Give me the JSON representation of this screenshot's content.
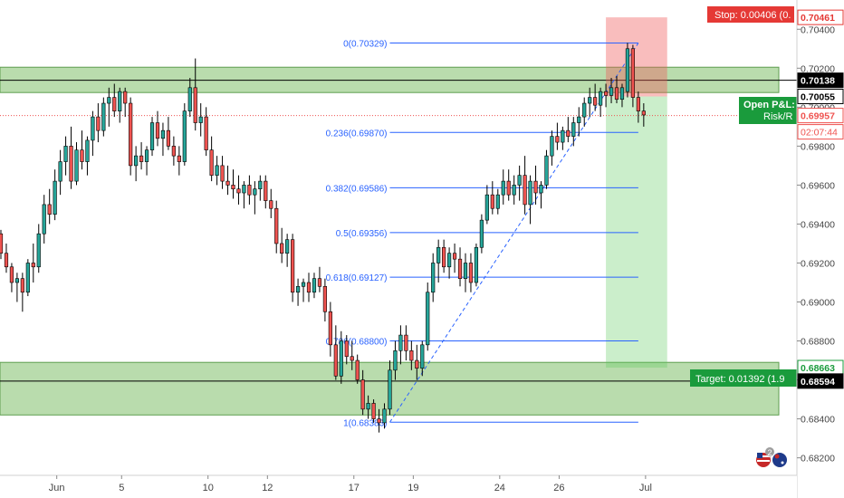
{
  "chart_data": {
    "type": "candlestick",
    "symbol_timeframe": "",
    "y_axis": {
      "ticks": [
        0.682,
        0.684,
        0.686,
        0.688,
        0.69,
        0.692,
        0.694,
        0.696,
        0.698,
        0.7,
        0.702,
        0.704
      ],
      "tick_labels": [
        "0.68200",
        "0.68400",
        "0.68600",
        "0.68800",
        "0.69000",
        "0.69200",
        "0.69400",
        "0.69600",
        "0.69800",
        "0.70000",
        "0.70200",
        "0.70400"
      ],
      "range": [
        0.6811,
        0.7055
      ]
    },
    "x_axis": {
      "labels": [
        {
          "label": "Jun",
          "bar": 9
        },
        {
          "label": "5",
          "bar": 21
        },
        {
          "label": "10",
          "bar": 37
        },
        {
          "label": "12",
          "bar": 48
        },
        {
          "label": "17",
          "bar": 64
        },
        {
          "label": "19",
          "bar": 75
        },
        {
          "label": "24",
          "bar": 91
        },
        {
          "label": "26",
          "bar": 102
        },
        {
          "label": "Jul",
          "bar": 118
        }
      ],
      "bar_count": 123
    },
    "candles_ohlc": [
      [
        0.6935,
        0.6937,
        0.6922,
        0.6925
      ],
      [
        0.6925,
        0.693,
        0.6915,
        0.6918
      ],
      [
        0.6918,
        0.692,
        0.6905,
        0.691
      ],
      [
        0.691,
        0.6915,
        0.69,
        0.6912
      ],
      [
        0.6912,
        0.6915,
        0.6895,
        0.6905
      ],
      [
        0.6905,
        0.6922,
        0.6903,
        0.692
      ],
      [
        0.692,
        0.693,
        0.691,
        0.6918
      ],
      [
        0.6918,
        0.694,
        0.6915,
        0.6935
      ],
      [
        0.6935,
        0.6955,
        0.693,
        0.695
      ],
      [
        0.695,
        0.6958,
        0.694,
        0.6945
      ],
      [
        0.6945,
        0.6968,
        0.6942,
        0.6962
      ],
      [
        0.6962,
        0.6978,
        0.6955,
        0.6972
      ],
      [
        0.6972,
        0.6985,
        0.6965,
        0.698
      ],
      [
        0.698,
        0.699,
        0.6958,
        0.6962
      ],
      [
        0.6962,
        0.6982,
        0.696,
        0.6978
      ],
      [
        0.6978,
        0.6988,
        0.6968,
        0.6972
      ],
      [
        0.6972,
        0.6985,
        0.6965,
        0.6983
      ],
      [
        0.6983,
        0.6998,
        0.6975,
        0.6995
      ],
      [
        0.6995,
        0.7002,
        0.6982,
        0.6988
      ],
      [
        0.6988,
        0.7005,
        0.6985,
        0.7002
      ],
      [
        0.7002,
        0.701,
        0.699,
        0.7005
      ],
      [
        0.7005,
        0.7012,
        0.6995,
        0.6998
      ],
      [
        0.6998,
        0.701,
        0.6992,
        0.7008
      ],
      [
        0.7008,
        0.701,
        0.6995,
        0.7002
      ],
      [
        0.7002,
        0.7005,
        0.6965,
        0.697
      ],
      [
        0.697,
        0.698,
        0.6962,
        0.6975
      ],
      [
        0.6975,
        0.6982,
        0.6968,
        0.6972
      ],
      [
        0.6972,
        0.698,
        0.6965,
        0.6978
      ],
      [
        0.6978,
        0.6995,
        0.6975,
        0.6992
      ],
      [
        0.6992,
        0.6998,
        0.698,
        0.6984
      ],
      [
        0.6984,
        0.6992,
        0.6975,
        0.6988
      ],
      [
        0.6988,
        0.6995,
        0.6978,
        0.698
      ],
      [
        0.698,
        0.6985,
        0.697,
        0.6975
      ],
      [
        0.6975,
        0.698,
        0.6965,
        0.6972
      ],
      [
        0.6972,
        0.7002,
        0.697,
        0.6998
      ],
      [
        0.6998,
        0.7015,
        0.6995,
        0.701
      ],
      [
        0.701,
        0.7025,
        0.6988,
        0.6992
      ],
      [
        0.6992,
        0.7002,
        0.6985,
        0.6995
      ],
      [
        0.6995,
        0.7,
        0.6975,
        0.6978
      ],
      [
        0.6978,
        0.6985,
        0.6962,
        0.6965
      ],
      [
        0.6965,
        0.6975,
        0.696,
        0.697
      ],
      [
        0.697,
        0.6975,
        0.6958,
        0.6962
      ],
      [
        0.6962,
        0.697,
        0.6955,
        0.696
      ],
      [
        0.696,
        0.6968,
        0.6953,
        0.6958
      ],
      [
        0.6958,
        0.6965,
        0.695,
        0.6956
      ],
      [
        0.6956,
        0.6962,
        0.6948,
        0.696
      ],
      [
        0.696,
        0.6965,
        0.695,
        0.6955
      ],
      [
        0.6955,
        0.6962,
        0.6945,
        0.6958
      ],
      [
        0.6958,
        0.6965,
        0.6952,
        0.6962
      ],
      [
        0.6962,
        0.6965,
        0.6948,
        0.6952
      ],
      [
        0.6952,
        0.6958,
        0.6943,
        0.6948
      ],
      [
        0.6948,
        0.6952,
        0.6925,
        0.693
      ],
      [
        0.693,
        0.6938,
        0.692,
        0.6925
      ],
      [
        0.6925,
        0.6935,
        0.6918,
        0.6932
      ],
      [
        0.6932,
        0.6935,
        0.69,
        0.6905
      ],
      [
        0.6905,
        0.6912,
        0.6898,
        0.6908
      ],
      [
        0.6908,
        0.6912,
        0.69,
        0.691
      ],
      [
        0.691,
        0.6915,
        0.69,
        0.6905
      ],
      [
        0.6905,
        0.6915,
        0.6902,
        0.6912
      ],
      [
        0.6912,
        0.6918,
        0.6905,
        0.6908
      ],
      [
        0.6908,
        0.6912,
        0.689,
        0.6895
      ],
      [
        0.6895,
        0.69,
        0.6872,
        0.6878
      ],
      [
        0.6878,
        0.6888,
        0.686,
        0.6862
      ],
      [
        0.6862,
        0.6885,
        0.6858,
        0.688
      ],
      [
        0.688,
        0.6883,
        0.6868,
        0.6872
      ],
      [
        0.6872,
        0.688,
        0.6865,
        0.687
      ],
      [
        0.687,
        0.6873,
        0.6858,
        0.686
      ],
      [
        0.686,
        0.6865,
        0.6842,
        0.6845
      ],
      [
        0.6845,
        0.6852,
        0.684,
        0.6848
      ],
      [
        0.6848,
        0.685,
        0.6838,
        0.684
      ],
      [
        0.684,
        0.6845,
        0.6833,
        0.6838
      ],
      [
        0.6838,
        0.6848,
        0.6835,
        0.6845
      ],
      [
        0.6845,
        0.687,
        0.6842,
        0.6865
      ],
      [
        0.6865,
        0.688,
        0.686,
        0.6875
      ],
      [
        0.6875,
        0.6888,
        0.6868,
        0.6883
      ],
      [
        0.6883,
        0.6888,
        0.687,
        0.6875
      ],
      [
        0.6875,
        0.688,
        0.6865,
        0.687
      ],
      [
        0.687,
        0.6878,
        0.686,
        0.6866
      ],
      [
        0.6866,
        0.688,
        0.6862,
        0.6878
      ],
      [
        0.6878,
        0.691,
        0.6875,
        0.6905
      ],
      [
        0.6905,
        0.6925,
        0.69,
        0.692
      ],
      [
        0.692,
        0.6932,
        0.691,
        0.6928
      ],
      [
        0.6928,
        0.6932,
        0.6915,
        0.6918
      ],
      [
        0.6918,
        0.6928,
        0.6912,
        0.6925
      ],
      [
        0.6925,
        0.693,
        0.6915,
        0.6922
      ],
      [
        0.6922,
        0.6928,
        0.6908,
        0.6912
      ],
      [
        0.6912,
        0.6925,
        0.6905,
        0.692
      ],
      [
        0.692,
        0.6925,
        0.6905,
        0.691
      ],
      [
        0.691,
        0.693,
        0.6908,
        0.6928
      ],
      [
        0.6928,
        0.6945,
        0.6925,
        0.6942
      ],
      [
        0.6942,
        0.696,
        0.694,
        0.6955
      ],
      [
        0.6955,
        0.6962,
        0.6945,
        0.6948
      ],
      [
        0.6948,
        0.6958,
        0.6945,
        0.6955
      ],
      [
        0.6955,
        0.6968,
        0.695,
        0.6962
      ],
      [
        0.6962,
        0.6968,
        0.6952,
        0.6955
      ],
      [
        0.6955,
        0.6965,
        0.695,
        0.696
      ],
      [
        0.696,
        0.697,
        0.6952,
        0.6965
      ],
      [
        0.6965,
        0.6975,
        0.6945,
        0.695
      ],
      [
        0.695,
        0.6965,
        0.694,
        0.6962
      ],
      [
        0.6962,
        0.697,
        0.695,
        0.6956
      ],
      [
        0.6956,
        0.6962,
        0.6948,
        0.696
      ],
      [
        0.696,
        0.6978,
        0.6958,
        0.6975
      ],
      [
        0.6975,
        0.6988,
        0.697,
        0.6985
      ],
      [
        0.6985,
        0.6992,
        0.6978,
        0.6982
      ],
      [
        0.6982,
        0.699,
        0.6978,
        0.6988
      ],
      [
        0.6988,
        0.6995,
        0.6982,
        0.6985
      ],
      [
        0.6985,
        0.6995,
        0.698,
        0.6992
      ],
      [
        0.6992,
        0.7,
        0.6985,
        0.6995
      ],
      [
        0.6995,
        0.7005,
        0.699,
        0.7002
      ],
      [
        0.7002,
        0.701,
        0.6995,
        0.7005
      ],
      [
        0.7005,
        0.7012,
        0.6998,
        0.7001
      ],
      [
        0.7001,
        0.701,
        0.6995,
        0.7008
      ],
      [
        0.7008,
        0.7012,
        0.7,
        0.7006
      ],
      [
        0.7006,
        0.7015,
        0.7002,
        0.701
      ],
      [
        0.701,
        0.7016,
        0.7002,
        0.7004
      ],
      [
        0.7004,
        0.7012,
        0.7,
        0.701
      ],
      [
        0.7008,
        0.7033,
        0.7005,
        0.703
      ],
      [
        0.703,
        0.7032,
        0.7,
        0.7005
      ],
      [
        0.7005,
        0.7008,
        0.6992,
        0.6998
      ],
      [
        0.6998,
        0.7002,
        0.699,
        0.6996
      ]
    ],
    "colors": {
      "up": "#26a69a",
      "down": "#ef5350",
      "wick": "#000000",
      "fib": "#2962ff",
      "sr_zone": "#7fbf6a",
      "stop": "#f05a5a",
      "target": "#1a9b3c",
      "price_line": "#ef5350"
    },
    "support_resistance_zones": [
      {
        "top": 0.70205,
        "bottom": 0.70075,
        "mid": 0.70138
      },
      {
        "top": 0.6869,
        "bottom": 0.6842,
        "mid": 0.68594
      }
    ],
    "fibonacci": {
      "start_bar": 72,
      "end_bar": 118,
      "levels": [
        {
          "label": "0(0.70329)",
          "price": 0.70329
        },
        {
          "label": "0.236(0.69870)",
          "price": 0.6987
        },
        {
          "label": "0.382(0.69586)",
          "price": 0.69586
        },
        {
          "label": "0.5(0.69356)",
          "price": 0.69356
        },
        {
          "label": "0.618(0.69127)",
          "price": 0.69127
        },
        {
          "label": "0.786(0.68800)",
          "price": 0.688
        },
        {
          "label": "1(0.68383)",
          "price": 0.68383
        }
      ],
      "trendline_from": [
        72,
        0.68383
      ],
      "trendline_to": [
        118,
        0.70329
      ]
    },
    "position": {
      "type": "long",
      "start_bar": 112,
      "end_bar": 122,
      "entry": 0.70055,
      "stop": 0.70461,
      "target": 0.68663,
      "stop_label": "Stop: 0.00406 (0.",
      "target_label": "Target: 0.01392 (1.9",
      "open_pl_label": "Open P&L:",
      "risk_reward_label": "Risk/R"
    },
    "dotted_price_line": 0.69957,
    "price_labels": [
      {
        "text": "0.70461",
        "price": 0.70461,
        "bg": "#ffffff",
        "fg": "#e53935",
        "border": "#e53935"
      },
      {
        "text": "0.70138",
        "price": 0.70138,
        "bg": "#000000",
        "fg": "#ffffff",
        "border": "#000000"
      },
      {
        "text": "0.70055",
        "price": 0.70055,
        "bg": "#ffffff",
        "fg": "#000000",
        "border": "#000000"
      },
      {
        "text": "0.69957",
        "price": 0.69957,
        "bg": "#ffffff",
        "fg": "#ef5350",
        "border": "#ef5350"
      },
      {
        "text": "0.68663",
        "price": 0.68663,
        "bg": "#ffffff",
        "fg": "#1a9b3c",
        "border": "#1a9b3c"
      },
      {
        "text": "0.68594",
        "price": 0.68594,
        "bg": "#000000",
        "fg": "#ffffff",
        "border": "#000000"
      }
    ],
    "countdown": {
      "text": "02:07:44",
      "price": 0.69957
    },
    "bottom_icons_badge": "2"
  }
}
